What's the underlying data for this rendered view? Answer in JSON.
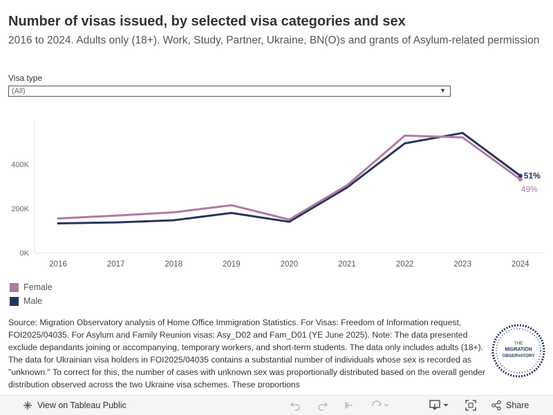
{
  "header": {
    "title": "Number of visas issued, by selected visa categories and sex",
    "subtitle": "2016 to 2024. Adults only (18+). Work, Study, Partner, Ukraine, BN(O)s and grants of Asylum-related permission"
  },
  "filter": {
    "label": "Visa type",
    "selected": "(All)"
  },
  "colors": {
    "female": "#b07aa1",
    "male": "#26355e",
    "grid": "#e6e6e6",
    "axis_text": "#666666"
  },
  "chart_data": {
    "type": "line",
    "title": "Number of visas issued, by selected visa categories and sex",
    "xlabel": "",
    "ylabel": "",
    "categories": [
      "2016",
      "2017",
      "2018",
      "2019",
      "2020",
      "2021",
      "2022",
      "2023",
      "2024"
    ],
    "ylim": [
      0,
      600000
    ],
    "y_ticks": [
      0,
      200000,
      400000
    ],
    "y_tick_labels": [
      "0K",
      "200K",
      "400K"
    ],
    "grid": false,
    "legend": "bottom-left",
    "series": [
      {
        "name": "Female",
        "color_key": "female",
        "values": [
          155000,
          168000,
          183000,
          215000,
          150000,
          305000,
          530000,
          522000,
          332000
        ],
        "end_label": "49%"
      },
      {
        "name": "Male",
        "color_key": "male",
        "values": [
          133000,
          137000,
          147000,
          180000,
          140000,
          295000,
          495000,
          542000,
          348000
        ],
        "end_label": "51%"
      }
    ]
  },
  "legend": {
    "items": [
      {
        "label": "Female",
        "color": "#b07aa1"
      },
      {
        "label": "Male",
        "color": "#26355e"
      }
    ]
  },
  "source": {
    "text": "Source: Migration Observatory analysis of Home Office Immigration Statistics. For Visas: Freedom of Information request, FOI2025/04035. For Asylum and Family Reunion visas: Asy_D02 and Fam_D01 (YE June 2025). Note: The data presented exclude depandants joining or accompanying, temporary workers, and short-term students. The data only includes adults (18+). The data for Ukrainian visa holders in FOI2025/04035 contains a substantial number of individuals whose sex is recorded as \"unknown.\" To correct for this, the number of cases with unknown sex was proportionally distributed based on the overall gender distribution observed across the two Ukraine visa schemes. These proportions"
  },
  "logo": {
    "line1": "THE",
    "line2": "MIGRATION",
    "line3": "OBSERVATORY"
  },
  "toolbar": {
    "view_label": "View on Tableau Public",
    "share_label": "Share"
  }
}
